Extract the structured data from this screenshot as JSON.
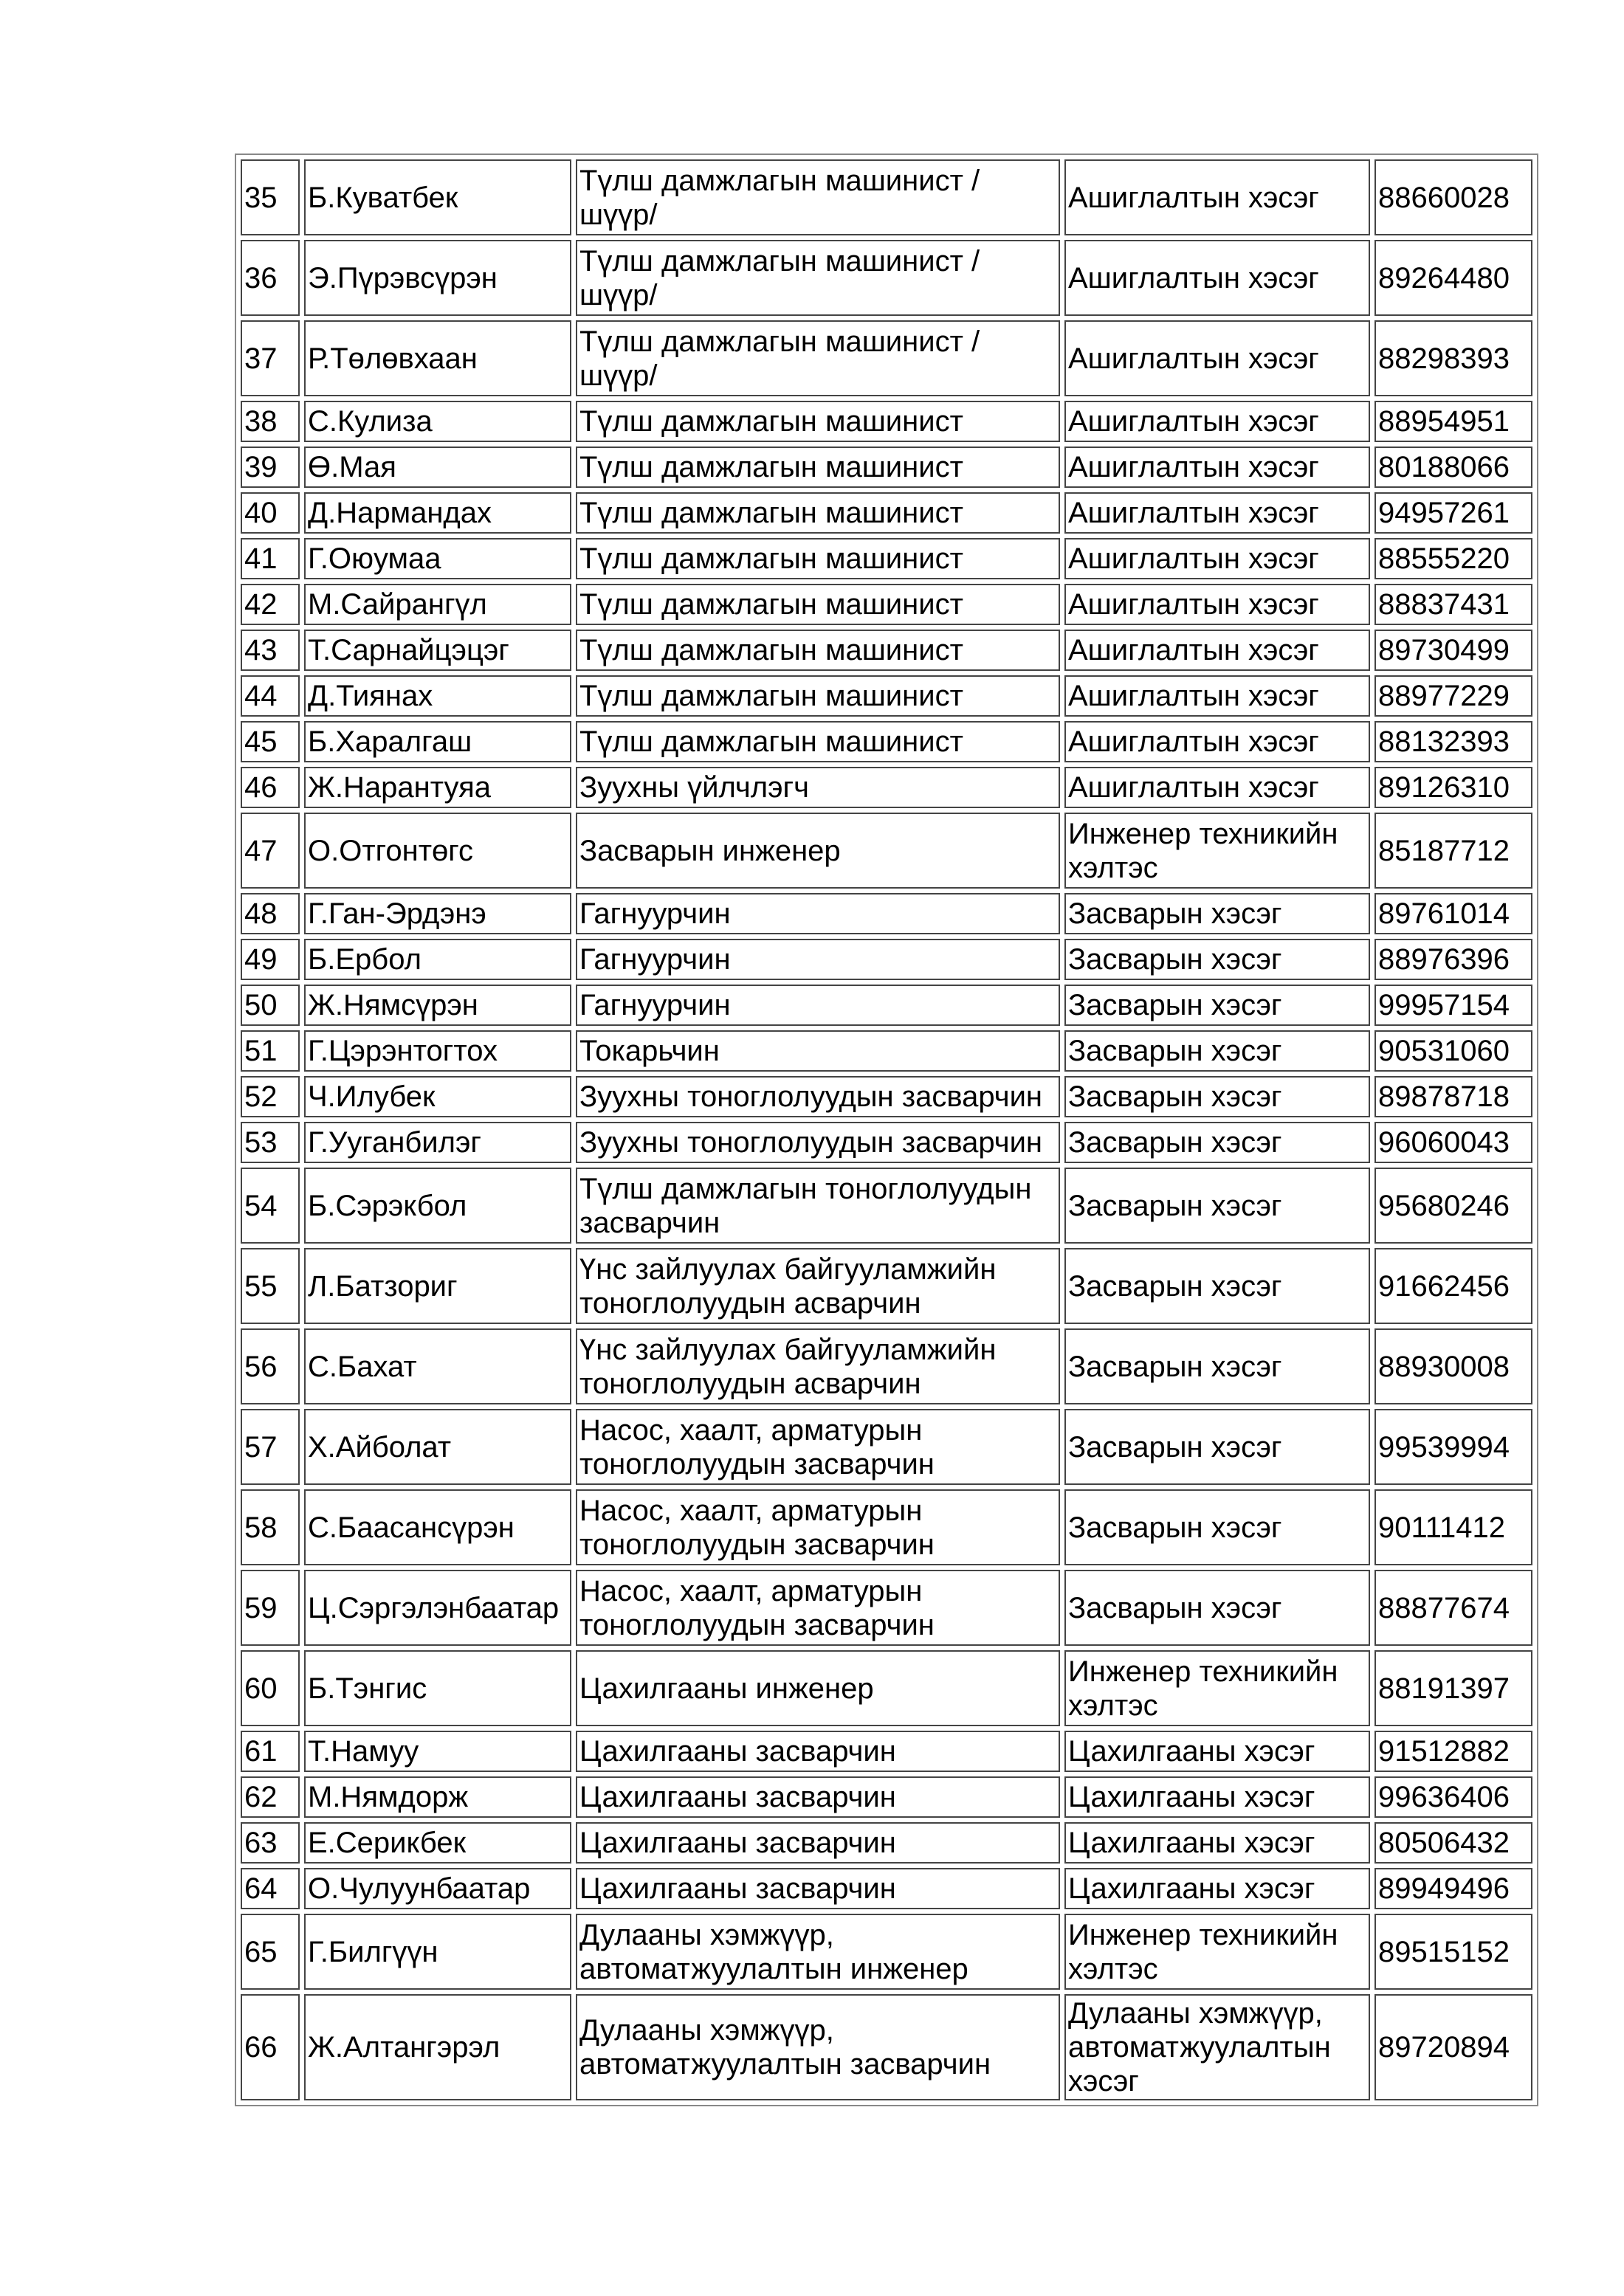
{
  "rows": [
    {
      "no": "35",
      "name": "Б.Куватбек",
      "position": "Түлш дамжлагын машинист /шүүр/",
      "department": "Ашиглалтын хэсэг",
      "phone": "88660028",
      "lines": 2
    },
    {
      "no": "36",
      "name": "Э.Пүрэвсүрэн",
      "position": "Түлш дамжлагын машинист /шүүр/",
      "department": "Ашиглалтын хэсэг",
      "phone": "89264480",
      "lines": 2
    },
    {
      "no": "37",
      "name": "Р.Төлөвхаан",
      "position": "Түлш дамжлагын машинист /шүүр/",
      "department": "Ашиглалтын хэсэг",
      "phone": "88298393",
      "lines": 2
    },
    {
      "no": "38",
      "name": "С.Кулиза",
      "position": "Түлш дамжлагын машинист",
      "department": "Ашиглалтын хэсэг",
      "phone": "88954951",
      "lines": 1
    },
    {
      "no": "39",
      "name": "Ө.Мая",
      "position": "Түлш дамжлагын машинист",
      "department": "Ашиглалтын хэсэг",
      "phone": "80188066",
      "lines": 1
    },
    {
      "no": "40",
      "name": "Д.Нармандах",
      "position": "Түлш дамжлагын машинист",
      "department": "Ашиглалтын хэсэг",
      "phone": "94957261",
      "lines": 1
    },
    {
      "no": "41",
      "name": "Г.Оюумаа",
      "position": "Түлш дамжлагын машинист",
      "department": "Ашиглалтын хэсэг",
      "phone": "88555220",
      "lines": 1
    },
    {
      "no": "42",
      "name": "М.Сайрангүл",
      "position": "Түлш дамжлагын машинист",
      "department": "Ашиглалтын хэсэг",
      "phone": "88837431",
      "lines": 1
    },
    {
      "no": "43",
      "name": "Т.Сарнайцэцэг",
      "position": "Түлш дамжлагын машинист",
      "department": "Ашиглалтын хэсэг",
      "phone": "89730499",
      "lines": 1
    },
    {
      "no": "44",
      "name": "Д.Тиянах",
      "position": "Түлш дамжлагын машинист",
      "department": "Ашиглалтын хэсэг",
      "phone": "88977229",
      "lines": 1
    },
    {
      "no": "45",
      "name": "Б.Харалгаш",
      "position": "Түлш дамжлагын машинист",
      "department": "Ашиглалтын хэсэг",
      "phone": "88132393",
      "lines": 1
    },
    {
      "no": "46",
      "name": "Ж.Нарантуяа",
      "position": "Зуухны үйлчлэгч",
      "department": "Ашиглалтын хэсэг",
      "phone": "89126310",
      "lines": 1
    },
    {
      "no": "47",
      "name": "О.Отгонтөгс",
      "position": "Засварын инженер",
      "department": "Инженер техникийн хэлтэс",
      "phone": "85187712",
      "lines": 2
    },
    {
      "no": "48",
      "name": "Г.Ган-Эрдэнэ",
      "position": "Гагнуурчин",
      "department": "Засварын хэсэг",
      "phone": "89761014",
      "lines": 1
    },
    {
      "no": "49",
      "name": "Б.Ербол",
      "position": "Гагнуурчин",
      "department": "Засварын хэсэг",
      "phone": "88976396",
      "lines": 1
    },
    {
      "no": "50",
      "name": "Ж.Нямсүрэн",
      "position": "Гагнуурчин",
      "department": "Засварын хэсэг",
      "phone": "99957154",
      "lines": 1
    },
    {
      "no": "51",
      "name": "Г.Цэрэнтогтох",
      "position": "Токарьчин",
      "department": "Засварын хэсэг",
      "phone": "90531060",
      "lines": 1
    },
    {
      "no": "52",
      "name": "Ч.Илубек",
      "position": "Зуухны тоноглолуудын засварчин",
      "department": "Засварын хэсэг",
      "phone": "89878718",
      "lines": 1
    },
    {
      "no": "53",
      "name": "Г.Ууганбилэг",
      "position": "Зуухны тоноглолуудын засварчин",
      "department": "Засварын хэсэг",
      "phone": "96060043",
      "lines": 1
    },
    {
      "no": "54",
      "name": "Б.Сэрэкбол",
      "position": "Түлш дамжлагын тоноглолуудын засварчин",
      "department": "Засварын хэсэг",
      "phone": "95680246",
      "lines": 2
    },
    {
      "no": "55",
      "name": "Л.Батзориг",
      "position": "Үнс зайлуулах байгууламжийн тоноглолуудын асварчин",
      "department": "Засварын хэсэг",
      "phone": "91662456",
      "lines": 2
    },
    {
      "no": "56",
      "name": "С.Бахат",
      "position": "Үнс зайлуулах байгууламжийн тоноглолуудын асварчин",
      "department": "Засварын хэсэг",
      "phone": "88930008",
      "lines": 2
    },
    {
      "no": "57",
      "name": "Х.Айболат",
      "position": "Насос, хаалт, арматурын тоноглолуудын засварчин",
      "department": "Засварын хэсэг",
      "phone": "99539994",
      "lines": 2
    },
    {
      "no": "58",
      "name": "С.Баасансүрэн",
      "position": "Насос, хаалт, арматурын тоноглолуудын засварчин",
      "department": "Засварын хэсэг",
      "phone": "90111412",
      "lines": 2
    },
    {
      "no": "59",
      "name": "Ц.Сэргэлэнбаатар",
      "position": "Насос, хаалт, арматурын тоноглолуудын засварчин",
      "department": "Засварын хэсэг",
      "phone": "88877674",
      "lines": 2
    },
    {
      "no": "60",
      "name": "Б.Тэнгис",
      "position": "Цахилгааны инженер",
      "department": "Инженер техникийн хэлтэс",
      "phone": "88191397",
      "lines": 2
    },
    {
      "no": "61",
      "name": "Т.Намуу",
      "position": "Цахилгааны засварчин",
      "department": "Цахилгааны хэсэг",
      "phone": "91512882",
      "lines": 1
    },
    {
      "no": "62",
      "name": "М.Нямдорж",
      "position": "Цахилгааны засварчин",
      "department": "Цахилгааны хэсэг",
      "phone": "99636406",
      "lines": 1
    },
    {
      "no": "63",
      "name": "Е.Серикбек",
      "position": "Цахилгааны засварчин",
      "department": "Цахилгааны хэсэг",
      "phone": "80506432",
      "lines": 1
    },
    {
      "no": "64",
      "name": "О.Чулуунбаатар",
      "position": "Цахилгааны засварчин",
      "department": "Цахилгааны хэсэг",
      "phone": "89949496",
      "lines": 1
    },
    {
      "no": "65",
      "name": "Г.Билгүүн",
      "position": "Дулааны хэмжүүр, автоматжуулалтын инженер",
      "department": "Инженер техникийн хэлтэс",
      "phone": "89515152",
      "lines": 2
    },
    {
      "no": "66",
      "name": "Ж.Алтангэрэл",
      "position": "Дулааны хэмжүүр, автоматжуулалтын засварчин",
      "department": "Дулааны хэмжүүр, автоматжуулалтын хэсэг",
      "phone": "89720894",
      "lines": 3
    }
  ]
}
